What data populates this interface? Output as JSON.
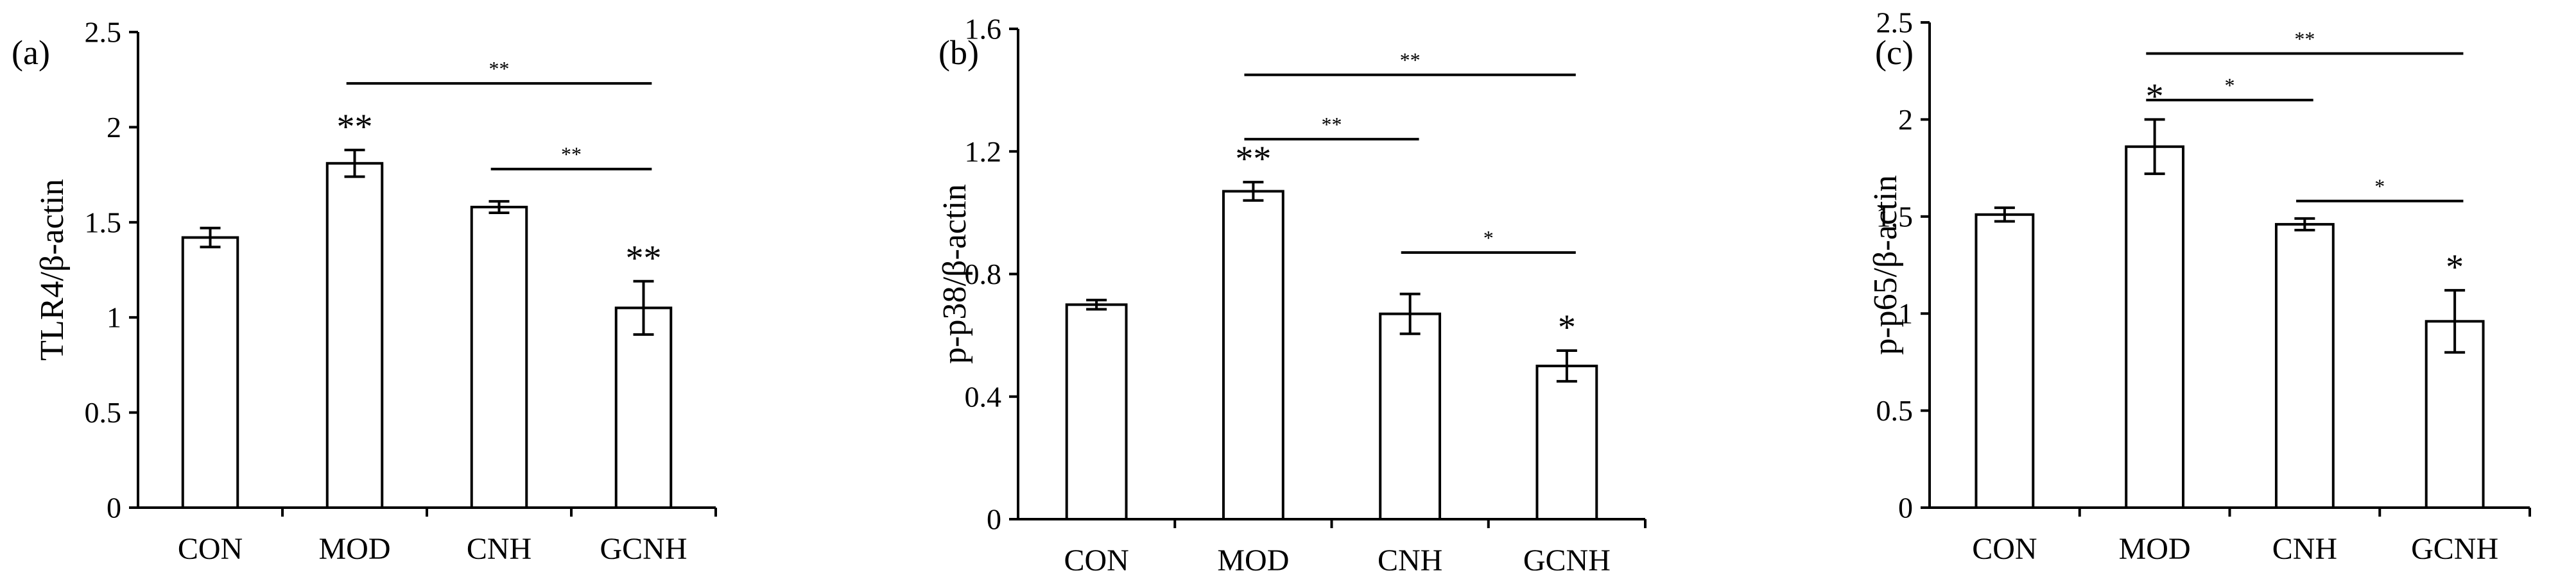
{
  "chart_data": [
    {
      "type": "bar",
      "panel": "(a)",
      "ylabel": "TLR4/β-actin",
      "xlabel": "",
      "categories": [
        "CON",
        "MOD",
        "CNH",
        "GCNH"
      ],
      "values": [
        1.42,
        1.81,
        1.58,
        1.05
      ],
      "errors": [
        0.05,
        0.07,
        0.03,
        0.14
      ],
      "ylim": [
        0,
        2.5
      ],
      "yticks": [
        0,
        0.5,
        1,
        1.5,
        2,
        2.5
      ],
      "ytick_labels": [
        "0",
        "0.5",
        "1",
        "1.5",
        "2",
        "2.5"
      ],
      "bar_marks": [
        "",
        "**",
        "",
        "**"
      ],
      "brackets": [
        {
          "from": "MOD",
          "to": "GCNH",
          "label": "**",
          "y": 2.23
        },
        {
          "from": "CNH",
          "to": "GCNH",
          "label": "**",
          "y": 1.78
        }
      ],
      "grid": false
    },
    {
      "type": "bar",
      "panel": "(b)",
      "ylabel": "p-p38/β-actin",
      "xlabel": "",
      "categories": [
        "CON",
        "MOD",
        "CNH",
        "GCNH"
      ],
      "values": [
        0.7,
        1.07,
        0.67,
        0.5
      ],
      "errors": [
        0.015,
        0.03,
        0.065,
        0.05
      ],
      "ylim": [
        0,
        1.6
      ],
      "yticks": [
        0,
        0.4,
        0.8,
        1.2,
        1.6
      ],
      "ytick_labels": [
        "0",
        "0.4",
        "0.8",
        "1.2",
        "1.6"
      ],
      "bar_marks": [
        "",
        "**",
        "",
        "*"
      ],
      "brackets": [
        {
          "from": "MOD",
          "to": "GCNH",
          "label": "**",
          "y": 1.45
        },
        {
          "from": "MOD",
          "to": "CNH",
          "label": "**",
          "y": 1.24
        },
        {
          "from": "CNH",
          "to": "GCNH",
          "label": "*",
          "y": 0.87
        }
      ],
      "grid": false
    },
    {
      "type": "bar",
      "panel": "(c)",
      "ylabel": "p-p65/β-actin",
      "xlabel": "",
      "categories": [
        "CON",
        "MOD",
        "CNH",
        "GCNH"
      ],
      "values": [
        1.51,
        1.86,
        1.46,
        0.96
      ],
      "errors": [
        0.035,
        0.14,
        0.03,
        0.16
      ],
      "ylim": [
        0,
        2.5
      ],
      "yticks": [
        0,
        0.5,
        1,
        1.5,
        2,
        2.5
      ],
      "ytick_labels": [
        "0",
        "0.5",
        "1",
        "1.5",
        "2",
        "2.5"
      ],
      "bar_marks": [
        "",
        "*",
        "",
        "*"
      ],
      "brackets": [
        {
          "from": "MOD",
          "to": "GCNH",
          "label": "**",
          "y": 2.34
        },
        {
          "from": "MOD",
          "to": "CNH",
          "label": "*",
          "y": 2.1
        },
        {
          "from": "CNH",
          "to": "GCNH",
          "label": "*",
          "y": 1.58
        }
      ],
      "grid": false
    }
  ]
}
